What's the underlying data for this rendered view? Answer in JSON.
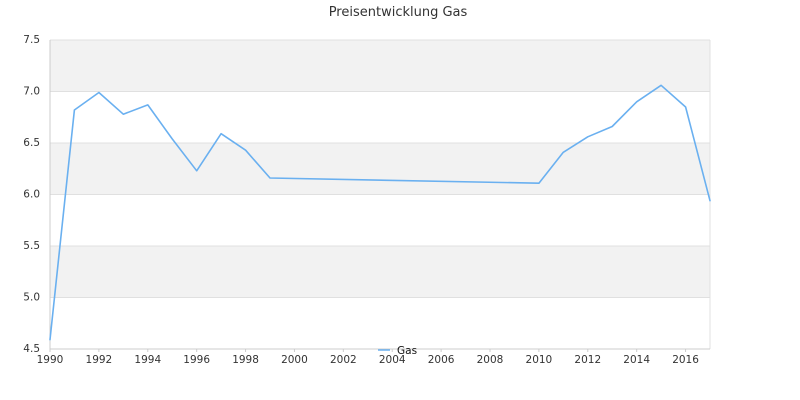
{
  "chart_data": {
    "type": "line",
    "title": "Preisentwicklung Gas",
    "xlabel": "",
    "ylabel": "",
    "xlim": [
      1990,
      2017
    ],
    "ylim": [
      4.5,
      7.5
    ],
    "x_ticks": [
      "1990",
      "1992",
      "1994",
      "1996",
      "1998",
      "2000",
      "2002",
      "2004",
      "2006",
      "2008",
      "2010",
      "2012",
      "2014",
      "2016"
    ],
    "y_ticks": [
      "4.5",
      "5.0",
      "5.5",
      "6.0",
      "6.5",
      "7.0",
      "7.5"
    ],
    "grid": "horizontal bands",
    "legend_position": "bottom-center",
    "series": [
      {
        "name": "Gas",
        "color": "#6ab0f0",
        "points": [
          {
            "x": 1990,
            "y": 4.59
          },
          {
            "x": 1991,
            "y": 6.82
          },
          {
            "x": 1992,
            "y": 6.99
          },
          {
            "x": 1993,
            "y": 6.78
          },
          {
            "x": 1994,
            "y": 6.87
          },
          {
            "x": 1995,
            "y": 6.54
          },
          {
            "x": 1996,
            "y": 6.23
          },
          {
            "x": 1997,
            "y": 6.59
          },
          {
            "x": 1998,
            "y": 6.43
          },
          {
            "x": 1999,
            "y": 6.16
          },
          {
            "x": 2010,
            "y": 6.11
          },
          {
            "x": 2011,
            "y": 6.41
          },
          {
            "x": 2012,
            "y": 6.56
          },
          {
            "x": 2013,
            "y": 6.66
          },
          {
            "x": 2014,
            "y": 6.9
          },
          {
            "x": 2015,
            "y": 7.06
          },
          {
            "x": 2016,
            "y": 6.85
          },
          {
            "x": 2017,
            "y": 5.94
          }
        ]
      }
    ],
    "colors": {
      "band_fill": "#f2f2f2",
      "grid_line": "#e0e0e0",
      "axis_line": "#cccccc"
    }
  }
}
